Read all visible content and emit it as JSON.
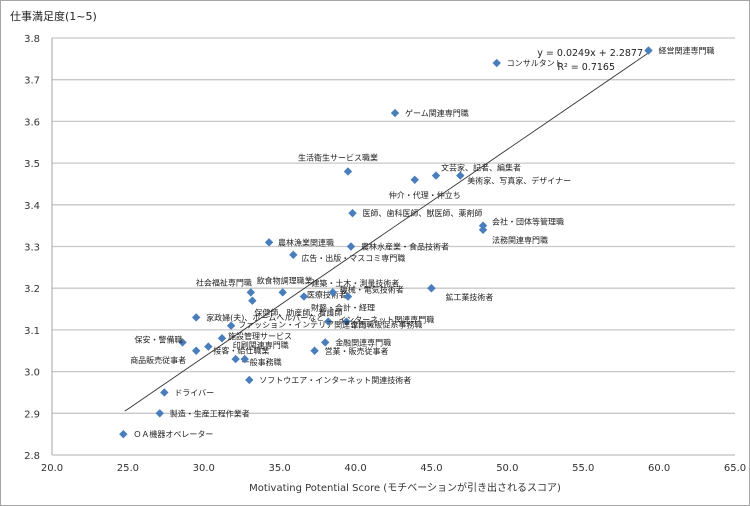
{
  "chart_data": {
    "type": "scatter",
    "title": "",
    "ylabel": "仕事満足度(1~5)",
    "xlabel": "Motivating Potential Score (モチベーションが引き出されるスコア)",
    "xlim": [
      20.0,
      65.0
    ],
    "ylim": [
      2.8,
      3.8
    ],
    "x_ticks": [
      "20.0",
      "25.0",
      "30.0",
      "35.0",
      "40.0",
      "45.0",
      "50.0",
      "55.0",
      "60.0",
      "65.0"
    ],
    "y_ticks": [
      "2.8",
      "2.9",
      "3.0",
      "3.1",
      "3.2",
      "3.3",
      "3.4",
      "3.5",
      "3.6",
      "3.7",
      "3.8"
    ],
    "grid": {
      "horizontal": true,
      "vertical": false
    },
    "marker_color": "#4a7ebb",
    "trendline": {
      "equation": "y = 0.0249x + 2.2877",
      "r2": "R² = 0.7165",
      "slope": 0.0249,
      "intercept": 2.2877,
      "x_range": [
        24.8,
        59.3
      ]
    },
    "points": [
      {
        "label": "経営関連専門職",
        "x": 59.3,
        "y": 3.77
      },
      {
        "label": "コンサルタント",
        "x": 49.3,
        "y": 3.74
      },
      {
        "label": "ゲーム関連専門職",
        "x": 42.6,
        "y": 3.62
      },
      {
        "label": "生活衛生サービス職業",
        "x": 39.5,
        "y": 3.48
      },
      {
        "label": "文芸家、記者、編集者",
        "x": 45.3,
        "y": 3.47
      },
      {
        "label": "美術家、写真家、デザイナー",
        "x": 46.9,
        "y": 3.47
      },
      {
        "label": "仲介・代理・仲立ち",
        "x": 43.9,
        "y": 3.46
      },
      {
        "label": "医師、歯科医師、獣医師、薬剤師",
        "x": 39.8,
        "y": 3.38
      },
      {
        "label": "会社・団体等管理職",
        "x": 48.4,
        "y": 3.35
      },
      {
        "label": "法務関連専門職",
        "x": 48.4,
        "y": 3.34
      },
      {
        "label": "農林漁業関連職",
        "x": 34.3,
        "y": 3.31
      },
      {
        "label": "農林水産業・食品技術者",
        "x": 39.7,
        "y": 3.3
      },
      {
        "label": "広告・出版・マスコミ専門職",
        "x": 35.9,
        "y": 3.28
      },
      {
        "label": "建築・土木・測量技術者",
        "x": 45.0,
        "y": 3.2
      },
      {
        "label": "鉱工業技術者",
        "x": 45.0,
        "y": 3.2
      },
      {
        "label": "社会福祉専門職",
        "x": 33.1,
        "y": 3.19
      },
      {
        "label": "飲食物調理職業",
        "x": 35.2,
        "y": 3.19
      },
      {
        "label": "医療技術者",
        "x": 36.6,
        "y": 3.18
      },
      {
        "label": "機械・電気技術者",
        "x": 38.5,
        "y": 3.19
      },
      {
        "label": "財務・会計・経理",
        "x": 39.5,
        "y": 3.18
      },
      {
        "label": "保健師、助産師、看護師",
        "x": 33.2,
        "y": 3.17
      },
      {
        "label": "家政婦(夫)、ホームヘルパーなど",
        "x": 29.5,
        "y": 3.13
      },
      {
        "label": "インターネット関連専門職",
        "x": 38.2,
        "y": 3.12
      },
      {
        "label": "企画・販促系事務職",
        "x": 39.4,
        "y": 3.12
      },
      {
        "label": "ファッション・インテリア関連専門職",
        "x": 31.8,
        "y": 3.11
      },
      {
        "label": "施設管理サービス",
        "x": 31.2,
        "y": 3.08
      },
      {
        "label": "保安・警備職",
        "x": 28.6,
        "y": 3.07
      },
      {
        "label": "接客・給仕職業",
        "x": 30.3,
        "y": 3.06
      },
      {
        "label": "金融関連専門職",
        "x": 38.0,
        "y": 3.07
      },
      {
        "label": "営業・販売従事者",
        "x": 37.3,
        "y": 3.05
      },
      {
        "label": "商品販売従事者",
        "x": 29.5,
        "y": 3.05
      },
      {
        "label": "一般事務職",
        "x": 32.1,
        "y": 3.03
      },
      {
        "label": "印刷関連専門職",
        "x": 32.7,
        "y": 3.03
      },
      {
        "label": "ソフトウエア・インターネット関連技術者",
        "x": 33.0,
        "y": 2.98
      },
      {
        "label": "ドライバー",
        "x": 27.4,
        "y": 2.95
      },
      {
        "label": "製造・生産工程作業者",
        "x": 27.1,
        "y": 2.9
      },
      {
        "label": "ＯＡ機器オペレーター",
        "x": 24.7,
        "y": 2.85
      }
    ]
  },
  "chart": {
    "ylabel": "仕事満足度(1~5)",
    "xlabel": "Motivating Potential Score (モチベーションが引き出されるスコア)",
    "equation": "y = 0.0249x + 2.2877",
    "r2": "R² = 0.7165"
  }
}
